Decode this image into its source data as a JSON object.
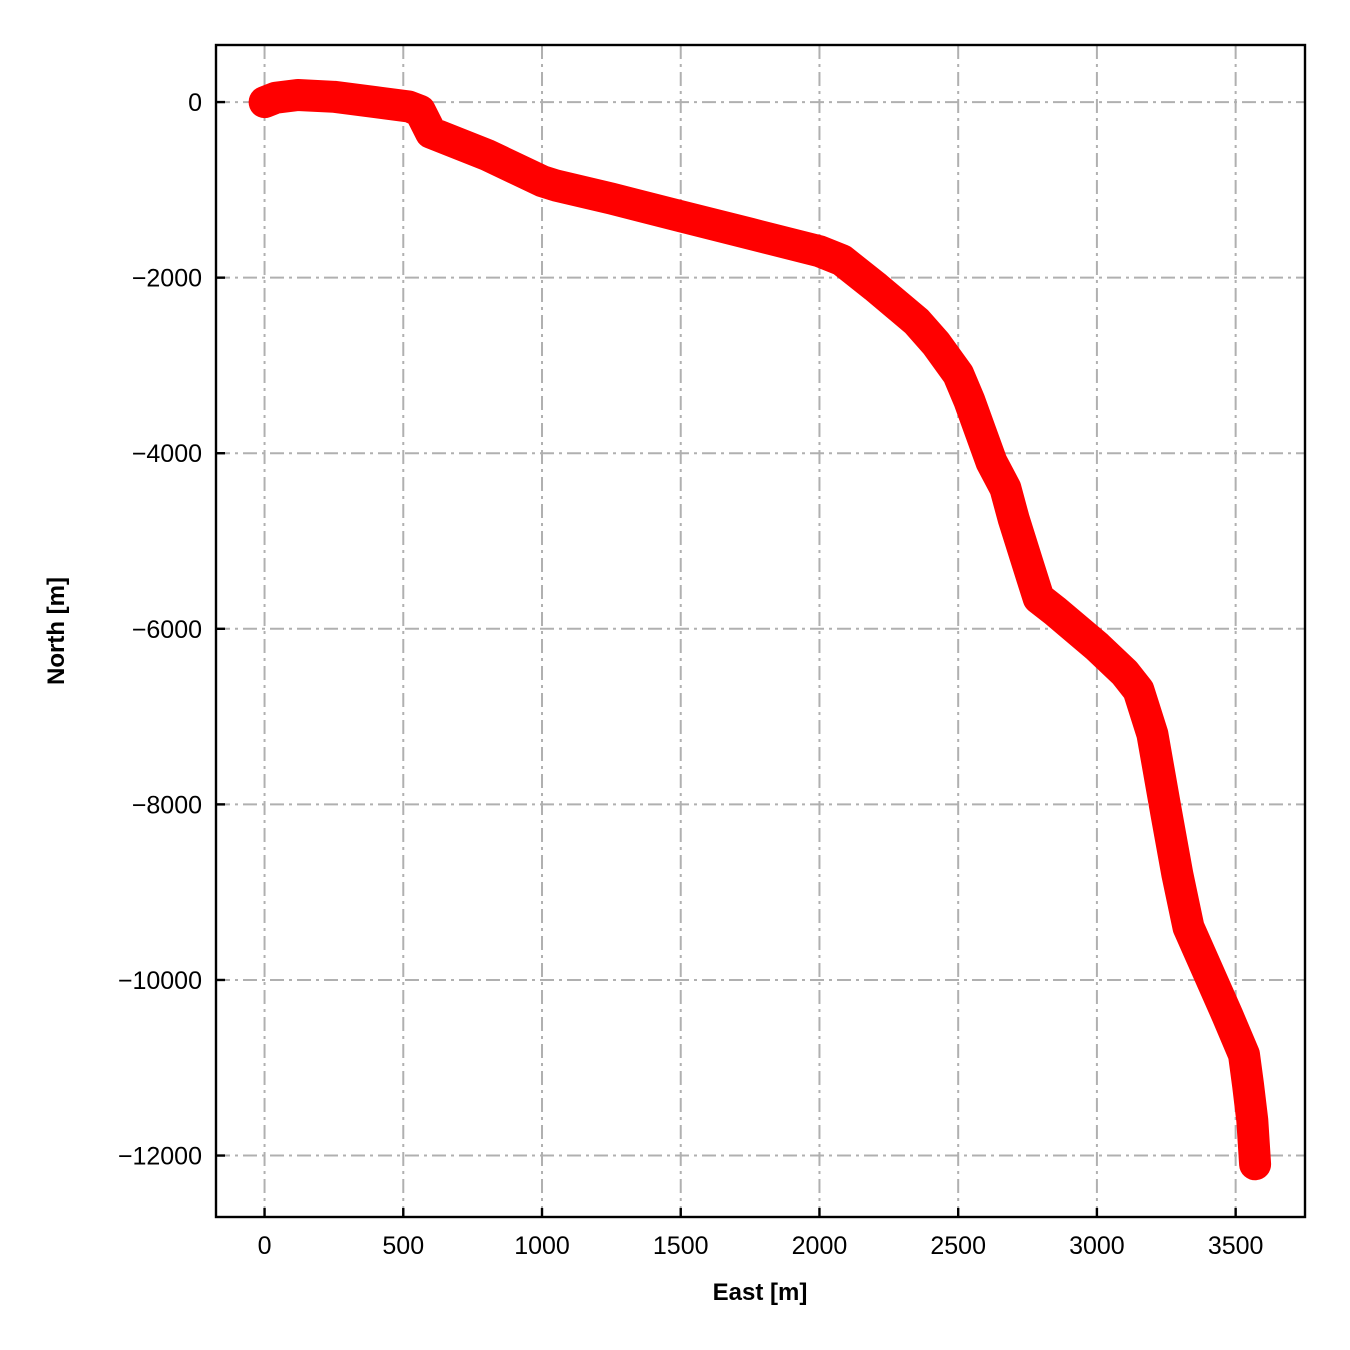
{
  "chart_data": {
    "type": "line",
    "title": "",
    "xlabel": "East [m]",
    "ylabel": "North [m]",
    "xlim": [
      -175,
      3750
    ],
    "ylim": [
      -12700,
      650
    ],
    "xticks": [
      0,
      500,
      1000,
      1500,
      2000,
      2500,
      3000,
      3500
    ],
    "yticks": [
      0,
      -2000,
      -4000,
      -6000,
      -8000,
      -10000,
      -12000
    ],
    "xtick_labels": [
      "0",
      "500",
      "1000",
      "1500",
      "2000",
      "2500",
      "3000",
      "3500"
    ],
    "ytick_labels": [
      "0",
      "−2000",
      "−4000",
      "−6000",
      "−8000",
      "−10000",
      "−12000"
    ],
    "grid": true,
    "series": [
      {
        "color": "#ff0000",
        "x": [
          0,
          40,
          120,
          250,
          400,
          520,
          560,
          600,
          800,
          1000,
          1050,
          1250,
          1500,
          1750,
          2000,
          2080,
          2200,
          2350,
          2420,
          2500,
          2540,
          2580,
          2620,
          2670,
          2700,
          2750,
          2790,
          2850,
          3000,
          3100,
          3150,
          3200,
          3250,
          3290,
          3330,
          3400,
          3470,
          3530,
          3545,
          3560,
          3570
        ],
        "y": [
          0,
          50,
          80,
          60,
          0,
          -50,
          -100,
          -350,
          -600,
          -900,
          -950,
          -1100,
          -1300,
          -1500,
          -1700,
          -1800,
          -2100,
          -2500,
          -2750,
          -3100,
          -3400,
          -3750,
          -4100,
          -4400,
          -4750,
          -5250,
          -5650,
          -5800,
          -6200,
          -6500,
          -6700,
          -7200,
          -8100,
          -8800,
          -9400,
          -9900,
          -10400,
          -10850,
          -11200,
          -11600,
          -12100
        ]
      }
    ]
  }
}
